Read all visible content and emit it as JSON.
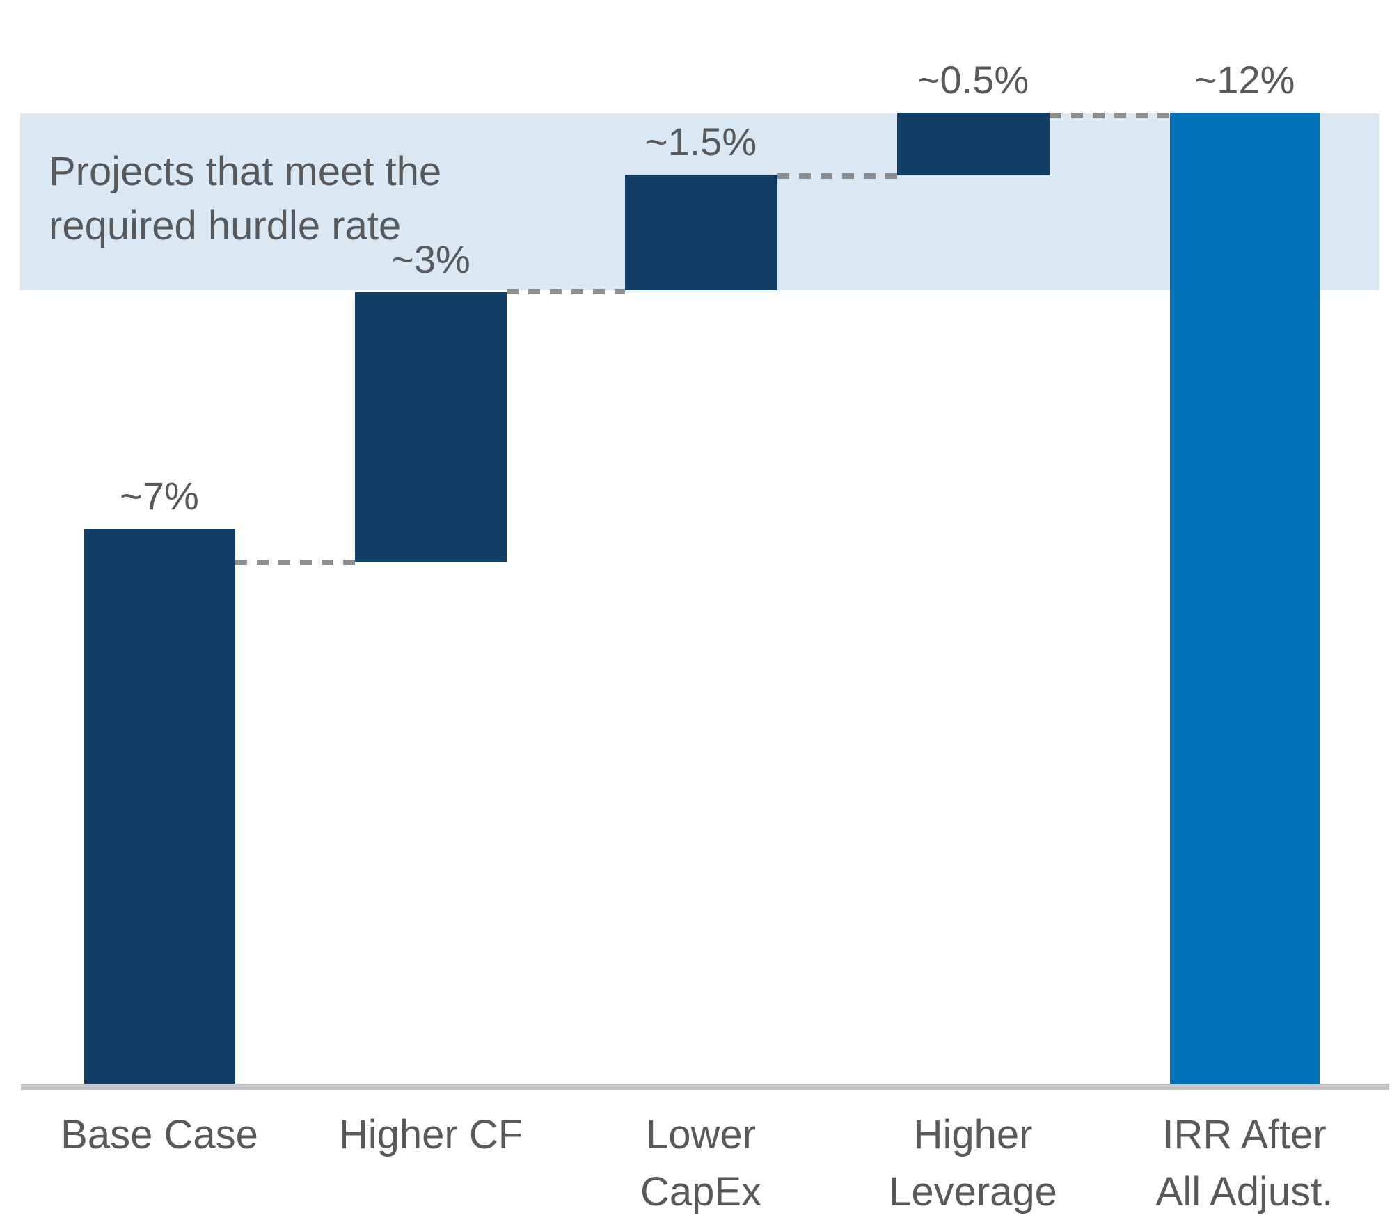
{
  "chart_data": {
    "type": "waterfall",
    "categories": [
      "Base Case",
      "Higher CF",
      "Lower CapEx",
      "Higher Leverage",
      "IRR After All Adjust."
    ],
    "category_labels": [
      "Base Case",
      "Higher CF",
      "Lower\nCapEx",
      "Higher\nLeverage",
      "IRR After\nAll Adjust."
    ],
    "values": [
      7,
      3,
      1.5,
      0.5,
      12
    ],
    "value_labels": [
      "~7%",
      "~3%",
      "~1.5%",
      "~0.5%",
      "~12%"
    ],
    "bar_roles": [
      "increment",
      "increment",
      "increment",
      "increment",
      "total"
    ],
    "annotation": "Projects that meet the\nrequired hurdle rate",
    "legend_position": "none",
    "grid": false,
    "colors": {
      "increment_bar": "#103e64",
      "total_bar": "#0072b8",
      "hurdle_band": "#d9e8f3",
      "connector": "#8e8e8e",
      "baseline": "#c6c6c6",
      "text": "#58595b"
    }
  }
}
